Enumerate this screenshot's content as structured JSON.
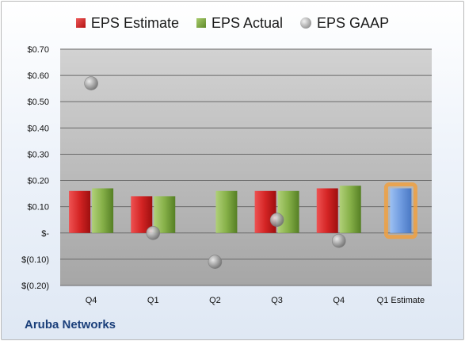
{
  "legend": {
    "estimate": "EPS Estimate",
    "actual": "EPS Actual",
    "gaap": "EPS GAAP"
  },
  "company": "Aruba Networks",
  "colors": {
    "estimate": "#c81e1e",
    "actual": "#7aa83a",
    "gaap": "#9a9a9a",
    "future_estimate": "#6f9be0",
    "highlight": "#f0a040"
  },
  "chart_data": {
    "type": "bar",
    "categories": [
      "Q4",
      "Q1",
      "Q2",
      "Q3",
      "Q4",
      "Q1 Estimate"
    ],
    "series": [
      {
        "name": "EPS Estimate",
        "values": [
          0.16,
          0.14,
          null,
          0.16,
          0.17,
          0.17
        ]
      },
      {
        "name": "EPS Actual",
        "values": [
          0.17,
          0.14,
          0.16,
          0.16,
          0.18,
          null
        ]
      },
      {
        "name": "EPS GAAP",
        "type": "scatter",
        "values": [
          0.57,
          0.0,
          -0.11,
          0.05,
          -0.03,
          null
        ]
      }
    ],
    "ylim": [
      -0.2,
      0.7
    ],
    "yticks": [
      0.7,
      0.6,
      0.5,
      0.4,
      0.3,
      0.2,
      0.1,
      0.0,
      -0.1,
      -0.2
    ],
    "ytick_labels": [
      "$0.70",
      "$0.60",
      "$0.50",
      "$0.40",
      "$0.30",
      "$0.20",
      "$0.10",
      "$-",
      "$(0.10)",
      "$(0.20)"
    ],
    "grid": true,
    "legend_position": "top"
  }
}
